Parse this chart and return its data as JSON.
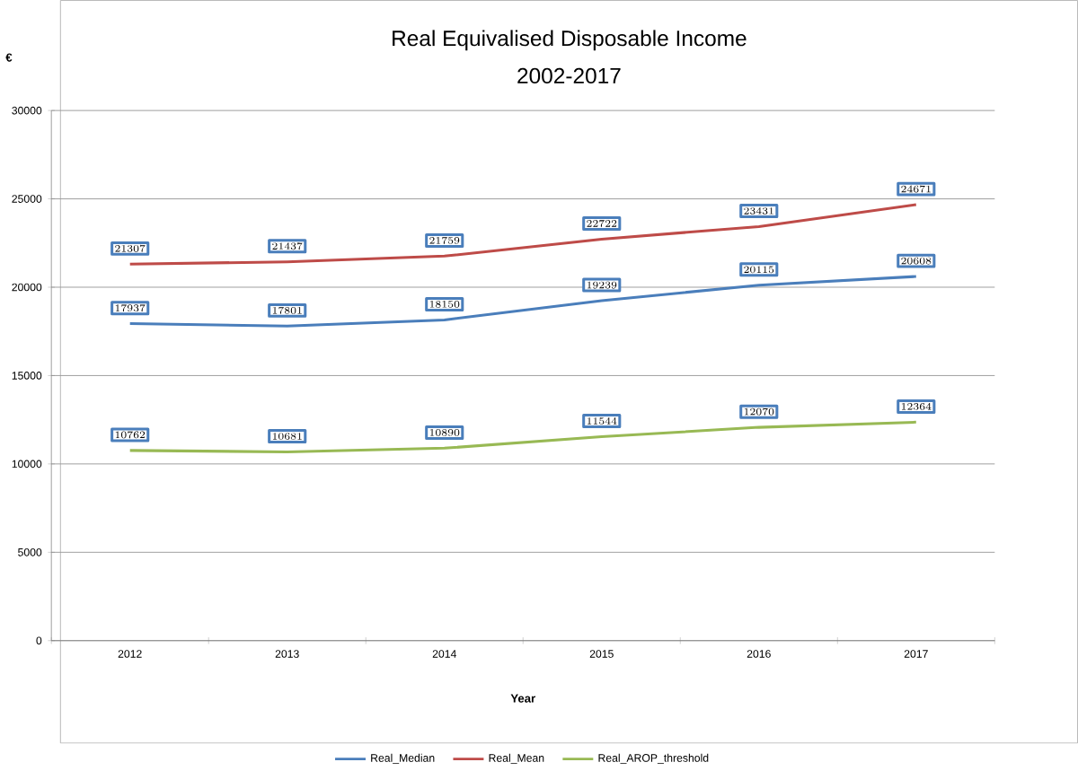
{
  "chart_data": {
    "type": "line",
    "title": "Real Equivalised Disposable Income",
    "subtitle": "2002-2017",
    "xlabel": "Year",
    "ylabel": "€",
    "categories": [
      "2012",
      "2013",
      "2014",
      "2015",
      "2016",
      "2017"
    ],
    "series": [
      {
        "name": "Real_Median",
        "color": "#4a7ebb",
        "values": [
          17937,
          17801,
          18150,
          19239,
          20115,
          20608
        ]
      },
      {
        "name": "Real_Mean",
        "color": "#be4b48",
        "values": [
          21307,
          21437,
          21759,
          22722,
          23431,
          24671
        ]
      },
      {
        "name": "Real_AROP_threshold",
        "color": "#98b954",
        "values": [
          10762,
          10681,
          10890,
          11544,
          12070,
          12364
        ]
      }
    ],
    "ylim": [
      0,
      30000
    ],
    "yticks": [
      0,
      5000,
      10000,
      15000,
      20000,
      25000,
      30000
    ],
    "grid": "y",
    "legend": "bottom",
    "data_labels": true,
    "marker": "none",
    "line_style": "solid"
  }
}
